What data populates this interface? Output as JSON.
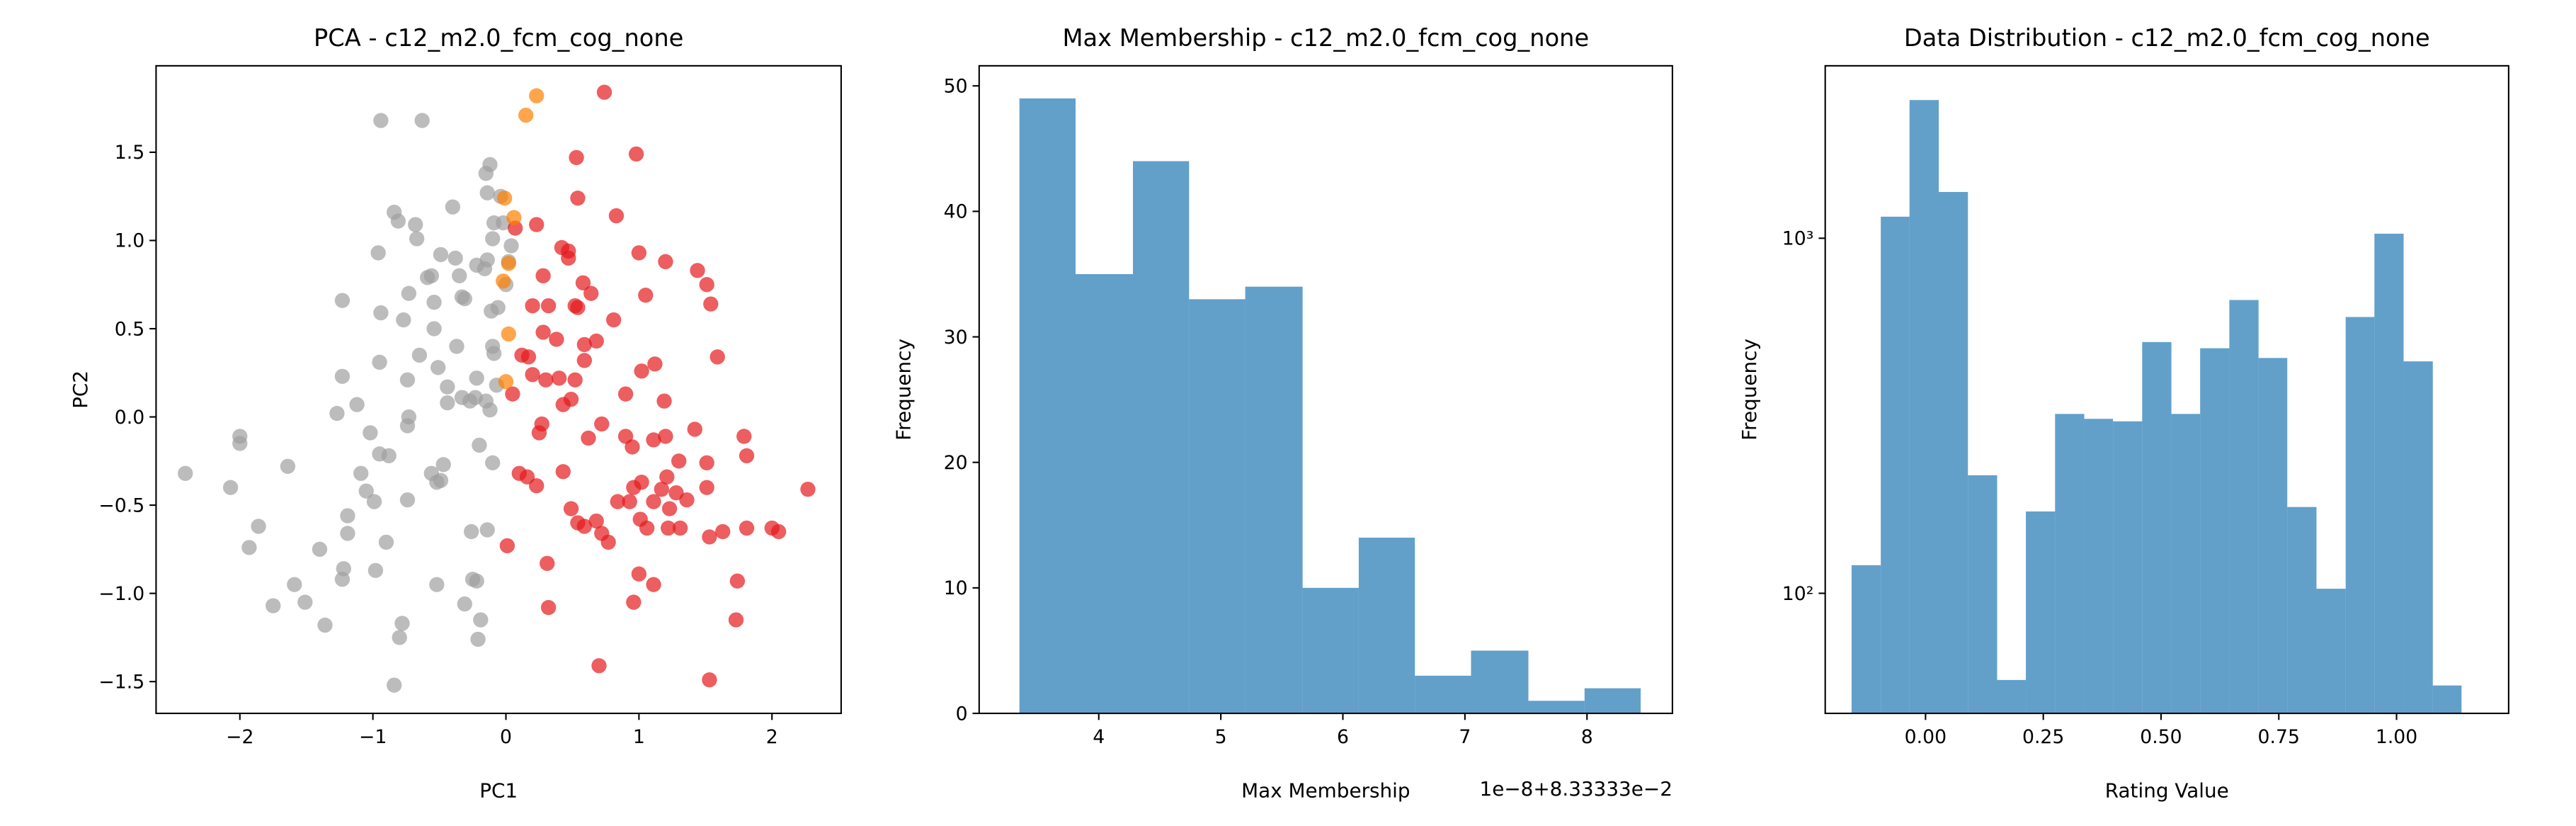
{
  "chart_data": [
    {
      "type": "scatter",
      "title": "PCA - c12_m2.0_fcm_cog_none",
      "x_label": "PC1",
      "y_label": "PC2",
      "xlim": [
        -2.63,
        2.52
      ],
      "ylim": [
        -1.68,
        1.99
      ],
      "xticks": [
        {
          "value": -2,
          "label": "−2"
        },
        {
          "value": -1,
          "label": "−1"
        },
        0,
        1,
        2
      ],
      "yticks": [
        {
          "value": -1.5,
          "label": "−1.5"
        },
        {
          "value": -1.0,
          "label": "−1.0"
        },
        {
          "value": -0.5,
          "label": "−0.5"
        },
        {
          "value": 0,
          "label": "0.0"
        },
        {
          "value": 0.5,
          "label": "0.5"
        },
        {
          "value": 1.0,
          "label": "1.0"
        },
        {
          "value": 1.5,
          "label": "1.5"
        }
      ],
      "series": [
        {
          "color": "#a0a0a0",
          "x": [
            -2.41,
            -2.07,
            -2.0,
            -2.0,
            -1.93,
            -1.86,
            -1.75,
            -1.64,
            -1.59,
            -1.51,
            -1.4,
            -1.36,
            -1.23,
            -1.22,
            -1.19,
            -1.19,
            -1.23,
            -1.27,
            -1.23,
            -1.12,
            -1.09,
            -1.05,
            -1.02,
            -0.99,
            -0.98,
            -0.95,
            -0.95,
            -0.94,
            -0.96,
            -0.94,
            -0.9,
            -0.88,
            -0.84,
            -0.8,
            -0.78,
            -0.74,
            -0.73,
            -0.74,
            -0.73,
            -0.77,
            -0.74,
            -0.81,
            -0.84,
            -0.68,
            -0.65,
            -0.67,
            -0.63,
            -0.59,
            -0.56,
            -0.56,
            -0.54,
            -0.54,
            -0.52,
            -0.49,
            -0.52,
            -0.51,
            -0.47,
            -0.49,
            -0.44,
            -0.44,
            -0.38,
            -0.37,
            -0.4,
            -0.35,
            -0.33,
            -0.33,
            -0.31,
            -0.31,
            -0.27,
            -0.26,
            -0.23,
            -0.22,
            -0.21,
            -0.2,
            -0.19,
            -0.16,
            -0.15,
            -0.14,
            -0.12,
            -0.14,
            -0.11,
            -0.1,
            -0.1,
            -0.09,
            -0.06,
            -0.07,
            -0.09,
            -0.04,
            -0.25,
            -0.22,
            -0.14,
            -0.12,
            -0.22,
            0.02,
            0.0,
            -0.02,
            0.04,
            -0.1,
            -0.15
          ],
          "y": [
            -0.32,
            -0.4,
            -0.11,
            -0.15,
            -0.74,
            -0.62,
            -1.07,
            -0.28,
            -0.95,
            -1.05,
            -0.75,
            -1.18,
            -0.92,
            -0.86,
            -0.56,
            -0.66,
            0.66,
            0.02,
            0.23,
            0.07,
            -0.32,
            -0.42,
            -0.09,
            -0.48,
            -0.87,
            -0.21,
            0.31,
            0.59,
            0.93,
            1.68,
            -0.71,
            -0.22,
            -1.52,
            -1.25,
            -1.17,
            -0.47,
            0.0,
            0.21,
            0.7,
            0.55,
            -0.05,
            1.11,
            1.16,
            1.09,
            0.35,
            1.01,
            1.68,
            0.79,
            0.8,
            -0.32,
            0.65,
            0.5,
            -0.37,
            -0.36,
            -0.95,
            0.28,
            -0.27,
            0.92,
            0.17,
            0.08,
            0.9,
            0.4,
            1.19,
            0.8,
            0.11,
            0.68,
            0.67,
            -1.06,
            0.09,
            -0.65,
            0.11,
            0.86,
            -1.26,
            -0.16,
            -1.15,
            0.84,
            1.38,
            0.89,
            1.43,
            1.27,
            0.6,
            1.01,
            0.4,
            1.1,
            0.62,
            0.18,
            0.36,
            1.25,
            -0.92,
            -0.93,
            -0.64,
            0.04,
            0.22,
            0.88,
            0.75,
            1.1,
            0.97,
            -0.26,
            0.09
          ]
        },
        {
          "color": "#e41a1c",
          "x": [
            0.74,
            0.53,
            0.98,
            0.54,
            0.83,
            0.07,
            0.23,
            0.47,
            0.42,
            0.47,
            0.28,
            0.58,
            0.64,
            1.0,
            1.2,
            1.44,
            1.51,
            1.54,
            1.59,
            1.05,
            0.2,
            0.28,
            0.32,
            0.38,
            0.52,
            0.54,
            0.59,
            0.68,
            0.81,
            0.12,
            0.17,
            0.2,
            0.3,
            0.4,
            0.52,
            0.59,
            0.9,
            1.02,
            1.12,
            1.19,
            0.05,
            0.27,
            0.25,
            0.43,
            0.49,
            0.62,
            0.72,
            0.9,
            0.95,
            1.11,
            1.2,
            1.42,
            1.79,
            1.81,
            0.1,
            0.16,
            0.23,
            0.43,
            0.49,
            0.54,
            0.59,
            0.68,
            0.72,
            0.77,
            0.93,
            0.96,
            1.01,
            1.02,
            1.06,
            1.11,
            1.17,
            1.22,
            1.23,
            1.31,
            1.36,
            1.51,
            1.51,
            1.53,
            1.63,
            2.0,
            2.05,
            2.27,
            0.01,
            0.31,
            0.32,
            0.96,
            1.0,
            1.11,
            1.74,
            1.73,
            1.53,
            0.7,
            1.3,
            1.28,
            0.84,
            1.21,
            1.81
          ],
          "y": [
            1.84,
            1.47,
            1.49,
            1.24,
            1.14,
            1.07,
            1.09,
            0.94,
            0.96,
            0.9,
            0.8,
            0.76,
            0.7,
            0.93,
            0.88,
            0.83,
            0.75,
            0.64,
            0.34,
            0.69,
            0.63,
            0.48,
            0.63,
            0.44,
            0.63,
            0.62,
            0.41,
            0.43,
            0.55,
            0.35,
            0.34,
            0.24,
            0.21,
            0.22,
            0.21,
            0.32,
            0.13,
            0.26,
            0.3,
            0.09,
            0.13,
            -0.04,
            -0.09,
            0.07,
            0.1,
            -0.12,
            -0.04,
            -0.11,
            -0.17,
            -0.13,
            -0.11,
            -0.07,
            -0.11,
            -0.22,
            -0.32,
            -0.34,
            -0.39,
            -0.31,
            -0.52,
            -0.6,
            -0.62,
            -0.59,
            -0.66,
            -0.71,
            -0.48,
            -0.4,
            -0.58,
            -0.37,
            -0.63,
            -0.48,
            -0.41,
            -0.63,
            -0.52,
            -0.63,
            -0.47,
            -0.26,
            -0.4,
            -0.68,
            -0.65,
            -0.63,
            -0.65,
            -0.41,
            -0.73,
            -0.83,
            -1.08,
            -1.05,
            -0.89,
            -0.95,
            -0.93,
            -1.15,
            -1.49,
            -1.41,
            -0.25,
            -0.43,
            -0.48,
            -0.34,
            -0.63
          ]
        },
        {
          "color": "#ff7f00",
          "x": [
            0.23,
            0.15,
            -0.01,
            0.06,
            0.02,
            -0.02,
            0.02,
            0.0
          ],
          "y": [
            1.82,
            1.71,
            1.24,
            1.13,
            0.87,
            0.77,
            0.47,
            0.2
          ]
        }
      ]
    },
    {
      "type": "histogram",
      "title": "Max Membership - c12_m2.0_fcm_cog_none",
      "x_label": "Max Membership",
      "y_label": "Frequency",
      "x_offset_label": "1e−8+8.33333e−2",
      "color": "#1f77b4",
      "xlim": [
        3.02,
        8.7
      ],
      "ylim": [
        0,
        51.6
      ],
      "xticks": [
        4,
        5,
        6,
        7,
        8
      ],
      "yticks": [
        0,
        10,
        20,
        30,
        40,
        50
      ],
      "bins": [
        3.35,
        3.81,
        4.28,
        4.74,
        5.2,
        5.67,
        6.13,
        6.59,
        7.05,
        7.52,
        7.98,
        8.44
      ],
      "values": [
        49,
        35,
        44,
        33,
        34,
        10,
        14,
        3,
        5,
        1,
        2
      ]
    },
    {
      "type": "histogram",
      "title": "Data Distribution - c12_m2.0_fcm_cog_none",
      "x_label": "Rating Value",
      "y_label": "Frequency",
      "color": "#1f77b4",
      "log_y": true,
      "xlim": [
        -0.213,
        1.238
      ],
      "ylim": [
        45.9,
        3060
      ],
      "xticks": [
        {
          "value": 0,
          "label": "0.00"
        },
        {
          "value": 0.25,
          "label": "0.25"
        },
        {
          "value": 0.5,
          "label": "0.50"
        },
        {
          "value": 0.75,
          "label": "0.75"
        },
        {
          "value": 1.0,
          "label": "1.00"
        }
      ],
      "yticks": [
        {
          "value": 100,
          "label": "10²"
        },
        {
          "value": 1000,
          "label": "10³"
        }
      ],
      "bins": [
        -0.157,
        -0.095,
        -0.034,
        0.028,
        0.09,
        0.152,
        0.213,
        0.275,
        0.337,
        0.398,
        0.46,
        0.522,
        0.583,
        0.645,
        0.707,
        0.768,
        0.83,
        0.892,
        0.953,
        1.015,
        1.077,
        1.138
      ],
      "values": [
        120,
        1150,
        2450,
        1350,
        215,
        57,
        170,
        320,
        310,
        305,
        510,
        320,
        490,
        670,
        460,
        175,
        103,
        600,
        1030,
        450,
        55
      ]
    }
  ]
}
